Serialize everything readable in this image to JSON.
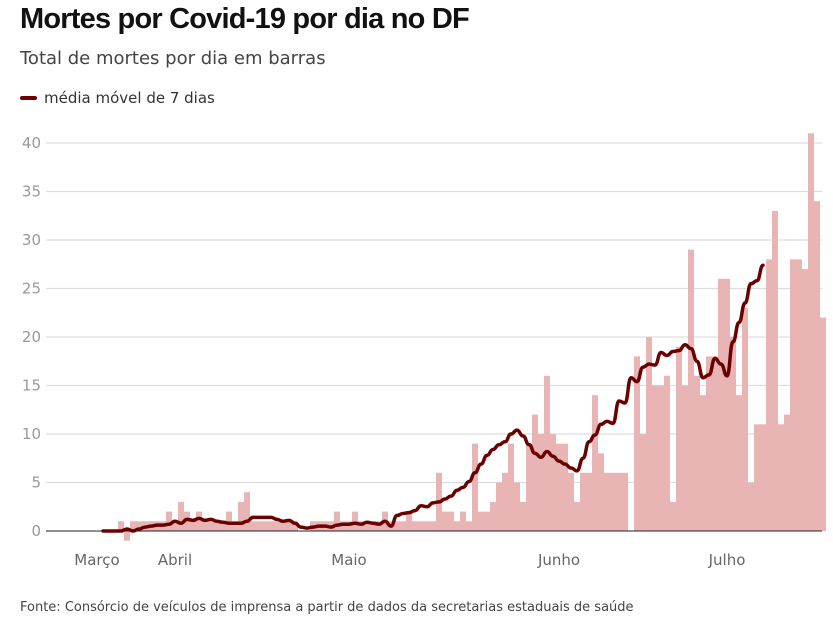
{
  "chart_data": {
    "type": "bar",
    "title": "Mortes por Covid-19 por dia no DF",
    "subtitle": "Total de mortes por dia em barras",
    "legend": [
      {
        "name": "média móvel de 7 dias",
        "color": "#6b0000",
        "type": "line"
      }
    ],
    "legend_placement": "top-left",
    "source": "Fonte: Consórcio de veículos de imprensa a partir de dados da secretarias estaduais de saúde",
    "xlabel": "",
    "ylabel": "",
    "ylim": [
      0,
      40
    ],
    "yticks": [
      0,
      5,
      10,
      15,
      20,
      25,
      30,
      35,
      40
    ],
    "grid": true,
    "x_tick_labels": [
      {
        "label": "Março",
        "day": -1
      },
      {
        "label": "Abril",
        "day": 12
      },
      {
        "label": "Maio",
        "day": 41
      },
      {
        "label": "Junho",
        "day": 76
      },
      {
        "label": "Julho",
        "day": 104
      }
    ],
    "bar_color": "#e8b4b4",
    "line_color": "#6b0000",
    "series": [
      {
        "name": "mortes por dia",
        "type": "bar",
        "values": [
          0,
          0,
          0,
          1,
          -1,
          1,
          1,
          1,
          1,
          1,
          1,
          2,
          1,
          3,
          2,
          1,
          2,
          1,
          1,
          1,
          1,
          2,
          1,
          3,
          4,
          1,
          1,
          1,
          1,
          1,
          1,
          1,
          1,
          0,
          0,
          1,
          1,
          1,
          1,
          2,
          1,
          1,
          2,
          1,
          1,
          1,
          1,
          2,
          1,
          1,
          1,
          2,
          1,
          1,
          1,
          1,
          6,
          2,
          2,
          1,
          2,
          1,
          9,
          2,
          2,
          3,
          5,
          6,
          9,
          5,
          3,
          9,
          12,
          10,
          16,
          10,
          9,
          9,
          6,
          3,
          6,
          6,
          14,
          8,
          6,
          6,
          6,
          6,
          0,
          18,
          10,
          20,
          15,
          15,
          16,
          3,
          19,
          15,
          29,
          16,
          14,
          18,
          18,
          26,
          26,
          20,
          14,
          23,
          5,
          11,
          11,
          28,
          33,
          11,
          12,
          28,
          28,
          27,
          41,
          34,
          22
        ]
      },
      {
        "name": "média móvel de 7 dias",
        "type": "line",
        "values": [
          0,
          0,
          0,
          0,
          0.2,
          0,
          0.2,
          0.4,
          0.5,
          0.6,
          0.6,
          0.7,
          1,
          0.8,
          1.2,
          1.1,
          1.3,
          1.1,
          1.2,
          1,
          0.9,
          0.8,
          0.8,
          0.8,
          1,
          1.4,
          1.4,
          1.4,
          1.4,
          1.2,
          1,
          1.1,
          0.8,
          0.4,
          0.3,
          0.4,
          0.5,
          0.5,
          0.4,
          0.6,
          0.7,
          0.7,
          0.8,
          0.7,
          0.9,
          0.8,
          0.7,
          1,
          0.5,
          1.6,
          1.8,
          1.9,
          2.1,
          2.6,
          2.5,
          2.9,
          3,
          3.3,
          3.6,
          4.2,
          4.5,
          5.1,
          6,
          6.9,
          7.8,
          8.4,
          8.9,
          9.2,
          10,
          10.4,
          9.8,
          8.9,
          8,
          7.6,
          8.2,
          7.7,
          7.2,
          6.9,
          6.5,
          6.2,
          7.5,
          9.2,
          9.9,
          11,
          11.3,
          11.1,
          13.4,
          13.2,
          15.8,
          15.4,
          16.9,
          17.2,
          17.1,
          18.4,
          18.1,
          18.5,
          18.6,
          19.2,
          18.8,
          17.5,
          15.8,
          16.1,
          17.8,
          17.2,
          16,
          19.5,
          21.5,
          23.5,
          25.5,
          25.8,
          27.4
        ]
      }
    ]
  }
}
